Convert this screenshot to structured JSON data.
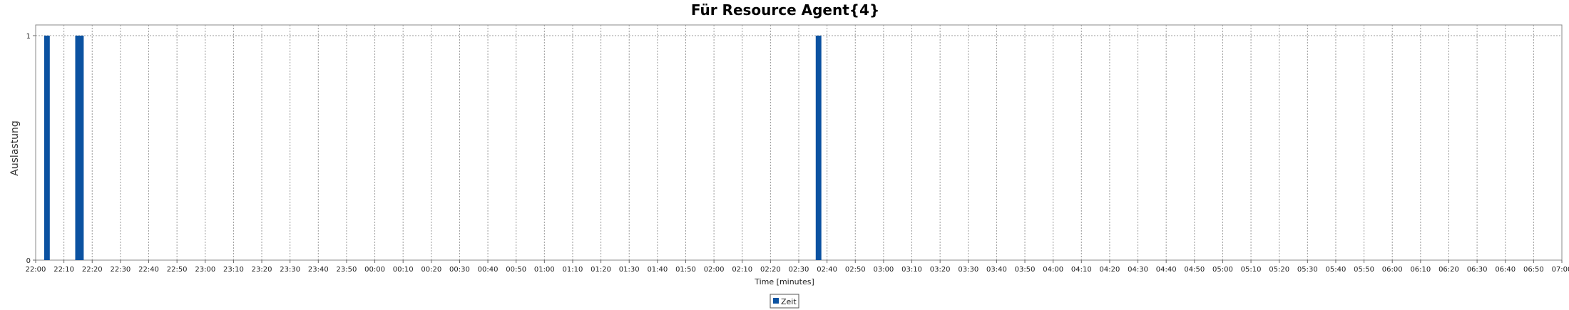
{
  "chart_data": {
    "type": "bar",
    "title": "Für Resource Agent{4}",
    "xlabel": "Time [minutes]",
    "ylabel": "Auslastung",
    "ylim": [
      0,
      1
    ],
    "y_ticks": [
      "0",
      "1"
    ],
    "x_ticks": [
      "22:00",
      "22:10",
      "22:20",
      "22:30",
      "22:40",
      "22:50",
      "23:00",
      "23:10",
      "23:20",
      "23:30",
      "23:40",
      "23:50",
      "00:00",
      "00:10",
      "00:20",
      "00:30",
      "00:40",
      "00:50",
      "01:00",
      "01:10",
      "01:20",
      "01:30",
      "01:40",
      "01:50",
      "02:00",
      "02:10",
      "02:20",
      "02:30",
      "02:40",
      "02:50",
      "03:00",
      "03:10",
      "03:20",
      "03:30",
      "03:40",
      "03:50",
      "04:00",
      "04:10",
      "04:20",
      "04:30",
      "04:40",
      "04:50",
      "05:00",
      "05:10",
      "05:20",
      "05:30",
      "05:40",
      "05:50",
      "06:00",
      "06:10",
      "06:20",
      "06:30",
      "06:40",
      "06:50",
      "07:00"
    ],
    "series": [
      {
        "name": "Zeit",
        "color": "#0b52a1",
        "bars": [
          {
            "start": "22:03",
            "end": "22:05",
            "value": 1
          },
          {
            "start": "22:14",
            "end": "22:17",
            "value": 1
          },
          {
            "start": "02:36",
            "end": "02:38",
            "value": 1
          }
        ]
      }
    ],
    "grid": true,
    "legend": "bottom-center"
  }
}
